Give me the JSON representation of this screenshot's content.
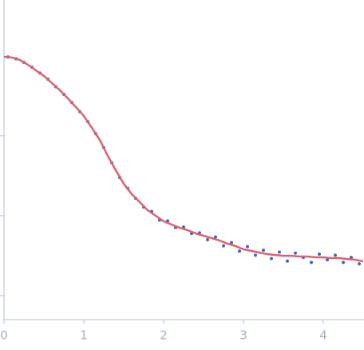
{
  "chart_data": {
    "type": "scatter",
    "xlim": [
      0,
      4.51
    ],
    "xticks": [
      0,
      1,
      2,
      3,
      4
    ],
    "ylim": [
      0.0005,
      5
    ],
    "yticks": [
      0.1,
      0.01,
      0.001
    ],
    "ytick_labels": false,
    "log_y": true,
    "series": [
      {
        "style": "markers",
        "color": "#3a68c2",
        "x": [
          0.05,
          0.15,
          0.25,
          0.35,
          0.45,
          0.55,
          0.65,
          0.75,
          0.85,
          0.95,
          1.05,
          1.15,
          1.25,
          1.35,
          1.45,
          1.55,
          1.65,
          1.75,
          1.85,
          1.95,
          2.05,
          2.15,
          2.25,
          2.35,
          2.45,
          2.55,
          2.65,
          2.75,
          2.85,
          2.95,
          3.05,
          3.15,
          3.25,
          3.35,
          3.45,
          3.55,
          3.65,
          3.75,
          3.85,
          3.95,
          4.05,
          4.15,
          4.25,
          4.35,
          4.45
        ],
        "values": [
          0.97,
          0.92,
          0.83,
          0.72,
          0.61,
          0.51,
          0.41,
          0.33,
          0.26,
          0.2,
          0.15,
          0.106,
          0.071,
          0.046,
          0.03,
          0.022,
          0.0165,
          0.0128,
          0.0113,
          0.0088,
          0.0086,
          0.0071,
          0.0072,
          0.006,
          0.0061,
          0.005,
          0.0054,
          0.0042,
          0.0046,
          0.0036,
          0.0041,
          0.0032,
          0.0037,
          0.0029,
          0.0035,
          0.0027,
          0.0034,
          0.003,
          0.0026,
          0.0033,
          0.0028,
          0.0032,
          0.0026,
          0.003,
          0.0025
        ]
      },
      {
        "style": "line",
        "color": "#e0606e",
        "x": [
          0,
          0.1,
          0.2,
          0.3,
          0.4,
          0.5,
          0.6,
          0.7,
          0.8,
          0.9,
          1.0,
          1.1,
          1.2,
          1.3,
          1.4,
          1.5,
          1.6,
          1.7,
          1.8,
          1.9,
          2.0,
          2.1,
          2.2,
          2.3,
          2.4,
          2.5,
          2.6,
          2.7,
          2.8,
          2.9,
          3.0,
          3.1,
          3.2,
          3.3,
          3.4,
          3.5,
          3.6,
          3.7,
          3.8,
          3.9,
          4.0,
          4.1,
          4.2,
          4.3,
          4.4,
          4.5
        ],
        "values": [
          0.975,
          0.953,
          0.889,
          0.774,
          0.659,
          0.561,
          0.456,
          0.371,
          0.294,
          0.229,
          0.177,
          0.126,
          0.0889,
          0.0561,
          0.0371,
          0.0251,
          0.0186,
          0.0148,
          0.0117,
          0.00998,
          0.0085,
          0.00774,
          0.00706,
          0.00659,
          0.00601,
          0.00561,
          0.00524,
          0.00489,
          0.00446,
          0.00416,
          0.00379,
          0.00362,
          0.00345,
          0.0033,
          0.00322,
          0.00315,
          0.00315,
          0.00308,
          0.00308,
          0.00301,
          0.00301,
          0.00294,
          0.00294,
          0.00287,
          0.00281,
          0.00268
        ]
      }
    ]
  }
}
